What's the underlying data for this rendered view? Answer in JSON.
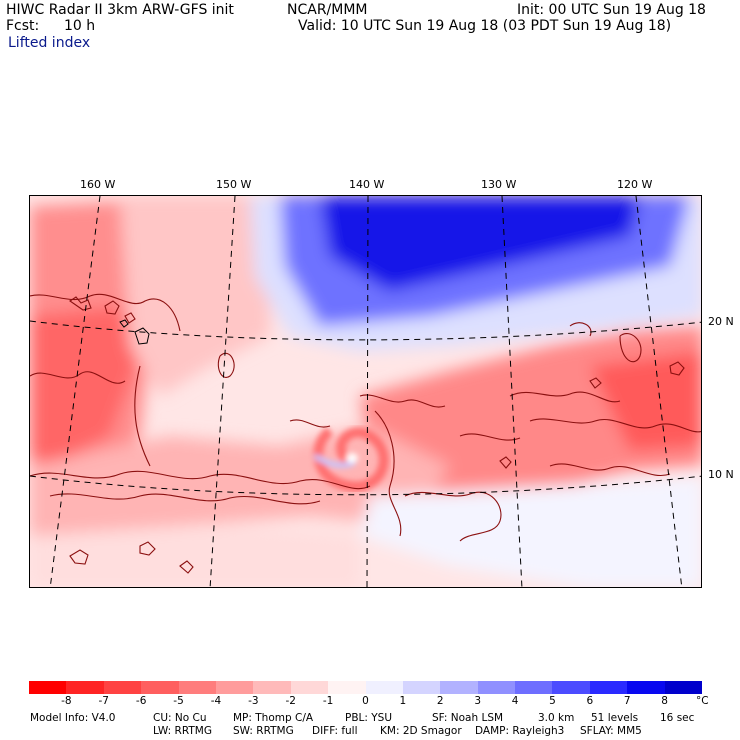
{
  "header": {
    "title": "HIWC Radar II 3km ARW-GFS init",
    "org": "NCAR/MMM",
    "init": "Init: 00 UTC Sun 19 Aug 18",
    "fcst_label": "Fcst:",
    "fcst_value": "10 h",
    "valid": "Valid: 10 UTC Sun 19 Aug 18 (03 PDT Sun 19 Aug 18)",
    "field": "Lifted index"
  },
  "map": {
    "lon_labels": [
      "160 W",
      "150 W",
      "140 W",
      "130 W",
      "120 W"
    ],
    "lat_labels": [
      "20 N",
      "10 N"
    ]
  },
  "colorbar": {
    "unit": "°C",
    "ticks": [
      "-8",
      "-7",
      "-6",
      "-5",
      "-4",
      "-3",
      "-2",
      "-1",
      "0",
      "1",
      "2",
      "3",
      "4",
      "5",
      "6",
      "7",
      "8"
    ],
    "colors": [
      "#ff0000",
      "#ff2424",
      "#ff4242",
      "#ff5f5f",
      "#ff7d7d",
      "#ff9c9c",
      "#ffbaba",
      "#ffd8d8",
      "#fff3f3",
      "#f0f0ff",
      "#d4d4ff",
      "#b2b2ff",
      "#9090ff",
      "#6e6eff",
      "#4c4cff",
      "#2a2aff",
      "#0808f0",
      "#0000cc"
    ]
  },
  "footer": {
    "line1": [
      "Model Info: V4.0",
      "CU: No Cu",
      "MP: Thomp C/A",
      "PBL: YSU",
      "SF: Noah LSM",
      "3.0 km",
      "51 levels",
      "16 sec"
    ],
    "line2": [
      "LW: RRTMG",
      "SW: RRTMG",
      "DIFF: full",
      "KM: 2D Smagor",
      "DAMP: Rayleigh3",
      "SFLAY: MM5"
    ]
  }
}
